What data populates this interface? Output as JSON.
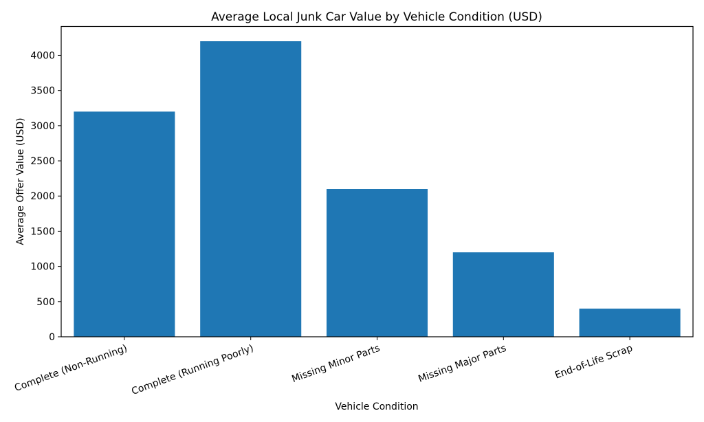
{
  "chart_data": {
    "type": "bar",
    "title": "Average Local Junk Car Value by Vehicle Condition (USD)",
    "xlabel": "Vehicle Condition",
    "ylabel": "Average Offer Value (USD)",
    "categories": [
      "Complete (Non-Running)",
      "Complete (Running Poorly)",
      "Missing Minor Parts",
      "Missing Major Parts",
      "End-of-Life Scrap"
    ],
    "values": [
      3200,
      4200,
      2100,
      1200,
      400
    ],
    "ylim": [
      0,
      4410
    ],
    "yticks": [
      0,
      500,
      1000,
      1500,
      2000,
      2500,
      3000,
      3500,
      4000
    ],
    "bar_color": "#1f77b4",
    "grid": false,
    "xtick_rotation_deg": -20
  }
}
